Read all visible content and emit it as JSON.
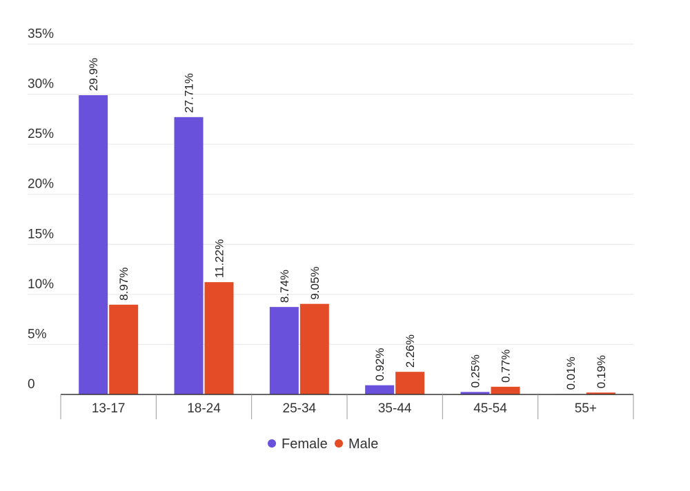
{
  "chart_data": {
    "type": "bar",
    "categories": [
      "13-17",
      "18-24",
      "25-34",
      "35-44",
      "45-54",
      "55+"
    ],
    "series": [
      {
        "name": "Female",
        "color": "#6a51db",
        "values": [
          29.9,
          27.71,
          8.74,
          0.92,
          0.25,
          0.01
        ],
        "labels": [
          "29.9%",
          "27.71%",
          "8.74%",
          "0.92%",
          "0.25%",
          "0.01%"
        ]
      },
      {
        "name": "Male",
        "color": "#e34c26",
        "values": [
          8.97,
          11.22,
          9.05,
          2.26,
          0.77,
          0.19
        ],
        "labels": [
          "8.97%",
          "11.22%",
          "9.05%",
          "2.26%",
          "0.77%",
          "0.19%"
        ]
      }
    ],
    "ylim": [
      0,
      35
    ],
    "y_ticks": [
      0,
      5,
      10,
      15,
      20,
      25,
      30,
      35
    ],
    "y_tick_labels": [
      "0",
      "5%",
      "10%",
      "15%",
      "20%",
      "25%",
      "30%",
      "35%"
    ],
    "grid": true,
    "legend_position": "bottom"
  }
}
